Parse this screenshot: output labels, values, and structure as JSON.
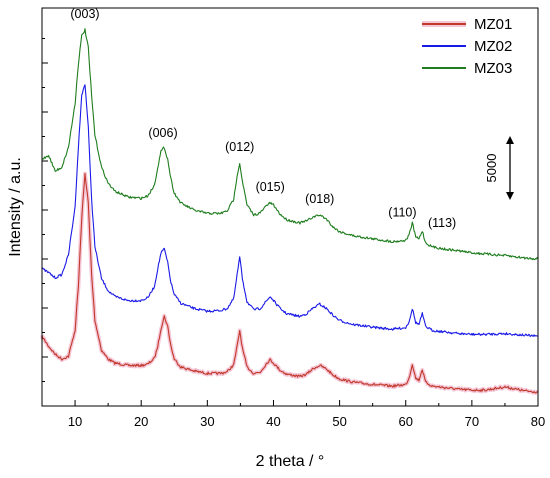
{
  "chart_data": {
    "type": "line",
    "xlabel": "2 theta / °",
    "ylabel": "Intensity / a.u.",
    "xlim": [
      5,
      80
    ],
    "ylim": [
      0,
      1
    ],
    "x_ticks": [
      10,
      20,
      30,
      40,
      50,
      60,
      70,
      80
    ],
    "y_tick_labels_shown": false,
    "legend_position": "top-right",
    "scale_bar": {
      "label": "5000",
      "value": 5000
    },
    "peak_labels": [
      {
        "text": "(003)",
        "x": 11.5
      },
      {
        "text": "(006)",
        "x": 23.3
      },
      {
        "text": "(012)",
        "x": 34.9
      },
      {
        "text": "(015)",
        "x": 39.5
      },
      {
        "text": "(018)",
        "x": 47.0
      },
      {
        "text": "(110)",
        "x": 61.0
      },
      {
        "text": "(113)",
        "x": 63.0
      }
    ],
    "series": [
      {
        "name": "MZ01",
        "color": "#c0392b",
        "legend_highlight": "#f5c6d6",
        "x": [
          5,
          6,
          7,
          8,
          9,
          10,
          10.5,
          11,
          11.5,
          12,
          12.5,
          13,
          14,
          15,
          16,
          18,
          20,
          21,
          22,
          22.5,
          23,
          23.5,
          24,
          24.5,
          25,
          26,
          28,
          30,
          32,
          33,
          34,
          34.5,
          34.9,
          35.3,
          36,
          37,
          38,
          39,
          39.5,
          40,
          41,
          42,
          44,
          45,
          46,
          47,
          48,
          49,
          50,
          52,
          55,
          58,
          60,
          60.5,
          61,
          61.5,
          62,
          62.5,
          63,
          64,
          66,
          68,
          70,
          72,
          75,
          78,
          80
        ],
        "y": [
          0.175,
          0.15,
          0.13,
          0.118,
          0.125,
          0.19,
          0.3,
          0.47,
          0.585,
          0.51,
          0.33,
          0.215,
          0.14,
          0.118,
          0.108,
          0.102,
          0.102,
          0.105,
          0.12,
          0.15,
          0.195,
          0.225,
          0.2,
          0.15,
          0.118,
          0.098,
          0.088,
          0.082,
          0.082,
          0.086,
          0.104,
          0.15,
          0.19,
          0.145,
          0.098,
          0.082,
          0.085,
          0.108,
          0.116,
          0.108,
          0.09,
          0.08,
          0.074,
          0.08,
          0.094,
          0.102,
          0.093,
          0.078,
          0.068,
          0.06,
          0.054,
          0.05,
          0.054,
          0.07,
          0.105,
          0.07,
          0.065,
          0.092,
          0.06,
          0.05,
          0.046,
          0.042,
          0.04,
          0.04,
          0.048,
          0.038,
          0.035
        ]
      },
      {
        "name": "MZ02",
        "color": "#1a1ae6",
        "x": [
          5,
          6,
          7,
          8,
          9,
          10,
          10.5,
          11,
          11.5,
          12,
          12.5,
          13,
          14,
          15,
          16,
          18,
          20,
          21,
          22,
          22.5,
          23,
          23.5,
          24,
          24.5,
          25,
          26,
          28,
          30,
          32,
          33,
          34,
          34.5,
          34.9,
          35.3,
          36,
          37,
          38,
          39,
          39.5,
          40,
          41,
          42,
          44,
          45,
          46,
          47,
          48,
          49,
          50,
          52,
          55,
          58,
          60,
          60.5,
          61,
          61.5,
          62,
          62.5,
          63,
          64,
          66,
          68,
          70,
          72,
          75,
          78,
          80
        ],
        "y": [
          0.345,
          0.335,
          0.322,
          0.33,
          0.38,
          0.5,
          0.65,
          0.78,
          0.81,
          0.7,
          0.52,
          0.4,
          0.32,
          0.29,
          0.275,
          0.265,
          0.265,
          0.272,
          0.3,
          0.345,
          0.385,
          0.395,
          0.36,
          0.31,
          0.28,
          0.258,
          0.245,
          0.238,
          0.24,
          0.245,
          0.27,
          0.33,
          0.375,
          0.32,
          0.262,
          0.242,
          0.245,
          0.265,
          0.275,
          0.265,
          0.245,
          0.232,
          0.225,
          0.232,
          0.246,
          0.256,
          0.245,
          0.228,
          0.215,
          0.205,
          0.198,
          0.193,
          0.197,
          0.212,
          0.245,
          0.21,
          0.205,
          0.232,
          0.2,
          0.19,
          0.186,
          0.182,
          0.18,
          0.18,
          0.182,
          0.178,
          0.175
        ]
      },
      {
        "name": "MZ03",
        "color": "#1e7d1e",
        "x": [
          5,
          6,
          7,
          8,
          9,
          10,
          10.5,
          11,
          11.5,
          12,
          12.5,
          13,
          14,
          15,
          16,
          18,
          20,
          21,
          22,
          22.5,
          23,
          23.5,
          24,
          24.5,
          25,
          26,
          28,
          30,
          32,
          33,
          34,
          34.5,
          34.9,
          35.3,
          36,
          37,
          38,
          39,
          39.5,
          40,
          41,
          42,
          44,
          45,
          46,
          47,
          48,
          49,
          50,
          52,
          55,
          58,
          60,
          60.5,
          61,
          61.5,
          62,
          62.5,
          63,
          64,
          66,
          68,
          70,
          72,
          75,
          78,
          80
        ],
        "y": [
          0.62,
          0.63,
          0.59,
          0.6,
          0.65,
          0.76,
          0.86,
          0.93,
          0.945,
          0.9,
          0.78,
          0.68,
          0.6,
          0.56,
          0.54,
          0.525,
          0.522,
          0.528,
          0.555,
          0.6,
          0.64,
          0.65,
          0.62,
          0.57,
          0.535,
          0.51,
          0.492,
          0.484,
          0.484,
          0.49,
          0.52,
          0.58,
          0.61,
          0.565,
          0.505,
          0.48,
          0.485,
          0.505,
          0.51,
          0.505,
          0.482,
          0.468,
          0.46,
          0.465,
          0.475,
          0.48,
          0.47,
          0.45,
          0.438,
          0.428,
          0.42,
          0.413,
          0.416,
          0.43,
          0.46,
          0.425,
          0.42,
          0.44,
          0.41,
          0.4,
          0.394,
          0.39,
          0.385,
          0.382,
          0.378,
          0.372,
          0.37
        ]
      }
    ]
  }
}
